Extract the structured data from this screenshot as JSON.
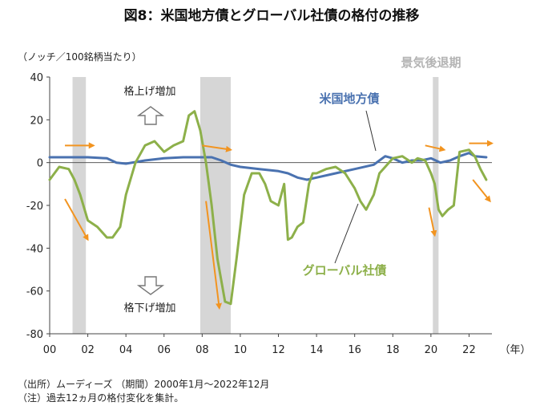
{
  "chart_data": {
    "type": "line",
    "title": "図8：米国地方債とグローバル社債の格付の推移",
    "ylabel": "（ノッチ／100銘柄当たり）",
    "xlabel": "（年）",
    "ylim": [
      -80,
      40
    ],
    "yticks": [
      40,
      20,
      0,
      -20,
      -40,
      -60,
      -80
    ],
    "ytick_labels": [
      "40",
      "20",
      "0",
      "-20",
      "-40",
      "-60",
      "-80"
    ],
    "xlim": [
      2000,
      2023.2
    ],
    "xticks": [
      2000,
      2002,
      2004,
      2006,
      2008,
      2010,
      2012,
      2014,
      2016,
      2018,
      2020,
      2022
    ],
    "xtick_labels": [
      "00",
      "02",
      "04",
      "06",
      "08",
      "10",
      "12",
      "14",
      "16",
      "18",
      "20",
      "22"
    ],
    "recessions": [
      [
        2001.2,
        2001.9
      ],
      [
        2007.9,
        2009.5
      ],
      [
        2020.1,
        2020.4
      ]
    ],
    "recession_label": "景気後退期",
    "series": [
      {
        "name": "米国地方債",
        "color": "#4a72b0",
        "x": [
          2000,
          2001,
          2002,
          2003,
          2003.5,
          2004,
          2005,
          2006,
          2007,
          2008,
          2008.5,
          2009,
          2009.5,
          2010,
          2011,
          2012,
          2012.5,
          2013,
          2013.5,
          2014,
          2015,
          2016,
          2017,
          2017.3,
          2017.6,
          2018,
          2018.5,
          2019,
          2019.5,
          2020,
          2020.5,
          2021,
          2021.5,
          2022,
          2022.3,
          2022.9
        ],
        "values": [
          2.5,
          2.5,
          2.5,
          2,
          0,
          -0.5,
          1,
          2,
          2.5,
          2.5,
          2.5,
          1,
          -1,
          -2,
          -3,
          -4,
          -5,
          -7,
          -8,
          -7,
          -5,
          -3,
          -1,
          1,
          3,
          2,
          0,
          1,
          1,
          2,
          0,
          1,
          3,
          4.5,
          3,
          2.5
        ]
      },
      {
        "name": "グローバル社債",
        "color": "#8db04a",
        "x": [
          2000,
          2000.5,
          2001,
          2001.3,
          2001.6,
          2002,
          2002.5,
          2003,
          2003.3,
          2003.7,
          2004,
          2004.5,
          2005,
          2005.5,
          2006,
          2006.5,
          2007,
          2007.3,
          2007.6,
          2007.9,
          2008.2,
          2008.5,
          2008.8,
          2009.2,
          2009.5,
          2009.8,
          2010.2,
          2010.6,
          2011,
          2011.3,
          2011.6,
          2012,
          2012.3,
          2012.5,
          2012.7,
          2013,
          2013.3,
          2013.6,
          2013.8,
          2014,
          2014.5,
          2015,
          2015.5,
          2016,
          2016.3,
          2016.6,
          2017,
          2017.3,
          2017.6,
          2018,
          2018.5,
          2019,
          2019.3,
          2019.7,
          2020,
          2020.2,
          2020.4,
          2020.6,
          2020.9,
          2021.2,
          2021.5,
          2022,
          2022.3,
          2022.6,
          2022.9
        ],
        "values": [
          -8,
          -2,
          -3,
          -8,
          -15,
          -27,
          -30,
          -35,
          -35,
          -30,
          -15,
          0,
          8,
          10,
          5,
          8,
          10,
          22,
          24,
          15,
          0,
          -20,
          -45,
          -65,
          -66,
          -45,
          -15,
          -5,
          -5,
          -10,
          -18,
          -20,
          -10,
          -36,
          -35,
          -30,
          -28,
          -10,
          -5,
          -5,
          -3,
          -2,
          -5,
          -12,
          -18,
          -22,
          -15,
          -5,
          -2,
          2,
          3,
          0,
          2,
          1,
          -5,
          -10,
          -22,
          -25,
          -22,
          -20,
          5,
          6,
          3,
          -3,
          -8
        ]
      }
    ],
    "annotations": {
      "up_label": "格上げ増加",
      "down_label": "格下げ増加",
      "blue_label": "米国地方債",
      "green_label": "グローバル社債"
    },
    "trend_arrows": [
      {
        "from": [
          2000.8,
          8
        ],
        "to": [
          2002.3,
          8
        ]
      },
      {
        "from": [
          2000.8,
          -17
        ],
        "to": [
          2002.0,
          -36
        ]
      },
      {
        "from": [
          2008.0,
          8
        ],
        "to": [
          2009.5,
          6
        ]
      },
      {
        "from": [
          2008.2,
          -18
        ],
        "to": [
          2008.9,
          -68
        ]
      },
      {
        "from": [
          2019.7,
          8
        ],
        "to": [
          2020.7,
          6
        ]
      },
      {
        "from": [
          2019.9,
          -21
        ],
        "to": [
          2020.2,
          -34
        ]
      },
      {
        "from": [
          2022.0,
          9
        ],
        "to": [
          2023.2,
          9
        ]
      },
      {
        "from": [
          2022.2,
          -8
        ],
        "to": [
          2023.1,
          -18
        ]
      }
    ],
    "notes": [
      "（出所）ムーディーズ （期間）2000年1月～2022年12月",
      "（注）過去12ヵ月の格付変化を集計。"
    ],
    "colors": {
      "recession": "#d6d6d6",
      "arrow": "#f29420",
      "axis": "#444444"
    }
  }
}
